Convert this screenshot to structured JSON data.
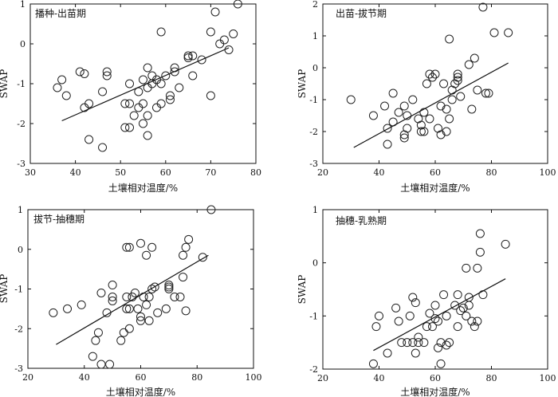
{
  "chart_data": [
    {
      "type": "scatter",
      "title": "播种-出苗期",
      "xlabel": "土壤相对温度/%",
      "ylabel": "SWAP",
      "xlim": [
        30,
        80
      ],
      "ylim": [
        -3,
        1
      ],
      "xticks": [
        30,
        40,
        50,
        60,
        70,
        80
      ],
      "yticks": [
        -3,
        -2,
        -1,
        0,
        1
      ],
      "grid": false,
      "points": [
        [
          36,
          -1.1
        ],
        [
          37,
          -0.9
        ],
        [
          38,
          -1.3
        ],
        [
          41,
          -0.7
        ],
        [
          42,
          -0.75
        ],
        [
          42,
          -1.6
        ],
        [
          43,
          -1.5
        ],
        [
          43,
          -2.4
        ],
        [
          46,
          -2.6
        ],
        [
          46,
          -1.2
        ],
        [
          47,
          -0.8
        ],
        [
          47,
          -0.7
        ],
        [
          51,
          -1.5
        ],
        [
          51,
          -2.1
        ],
        [
          52,
          -1.0
        ],
        [
          52,
          -1.5
        ],
        [
          52,
          -2.1
        ],
        [
          53,
          -1.8
        ],
        [
          54,
          -1.6
        ],
        [
          54,
          -1.2
        ],
        [
          55,
          -0.9
        ],
        [
          55,
          -1.5
        ],
        [
          55,
          -2.0
        ],
        [
          56,
          -0.6
        ],
        [
          56,
          -1.1
        ],
        [
          56,
          -1.8
        ],
        [
          56,
          -2.3
        ],
        [
          57,
          -0.8
        ],
        [
          57,
          -1.0
        ],
        [
          58,
          -0.9
        ],
        [
          58,
          -1.6
        ],
        [
          59,
          0.3
        ],
        [
          59,
          -1.5
        ],
        [
          59,
          -1.0
        ],
        [
          60,
          -0.8
        ],
        [
          61,
          -1.3
        ],
        [
          61,
          -1.4
        ],
        [
          62,
          -0.6
        ],
        [
          62,
          -0.7
        ],
        [
          63,
          -1.1
        ],
        [
          65,
          -0.3
        ],
        [
          65,
          -0.35
        ],
        [
          66,
          -0.8
        ],
        [
          66,
          -0.3
        ],
        [
          68,
          -0.4
        ],
        [
          70,
          0.3
        ],
        [
          70,
          -1.3
        ],
        [
          71,
          0.8
        ],
        [
          72,
          0.0
        ],
        [
          73,
          0.1
        ],
        [
          74,
          -0.15
        ],
        [
          75,
          0.25
        ],
        [
          76,
          1.0
        ]
      ],
      "fit": [
        [
          37,
          -1.93
        ],
        [
          74,
          -0.1
        ]
      ]
    },
    {
      "type": "scatter",
      "title": "出苗-拔节期",
      "xlabel": "土壤相对温度/%",
      "ylabel": "SWAP",
      "xlim": [
        20,
        100
      ],
      "ylim": [
        -3,
        2
      ],
      "xticks": [
        20,
        40,
        60,
        80,
        100
      ],
      "yticks": [
        -3,
        -2,
        -1,
        0,
        1,
        2
      ],
      "grid": false,
      "points": [
        [
          30,
          -1.0
        ],
        [
          38,
          -1.5
        ],
        [
          42,
          -1.2
        ],
        [
          43,
          -1.9
        ],
        [
          43,
          -2.4
        ],
        [
          45,
          -0.8
        ],
        [
          45,
          -1.7
        ],
        [
          47,
          -1.4
        ],
        [
          49,
          -2.1
        ],
        [
          49,
          -2.2
        ],
        [
          49,
          -1.2
        ],
        [
          50,
          -1.5
        ],
        [
          50,
          -1.9
        ],
        [
          52,
          -1.0
        ],
        [
          54,
          -1.6
        ],
        [
          55,
          -2.0
        ],
        [
          55,
          -1.8
        ],
        [
          56,
          -1.4
        ],
        [
          56,
          -2.0
        ],
        [
          57,
          -0.5
        ],
        [
          58,
          -0.2
        ],
        [
          58,
          -1.6
        ],
        [
          59,
          -0.3
        ],
        [
          60,
          -0.2
        ],
        [
          61,
          -1.9
        ],
        [
          62,
          -1.2
        ],
        [
          62,
          -2.1
        ],
        [
          63,
          -0.5
        ],
        [
          64,
          -1.3
        ],
        [
          64,
          -2.0
        ],
        [
          65,
          0.9
        ],
        [
          65,
          -1.6
        ],
        [
          66,
          -0.7
        ],
        [
          66,
          -1.0
        ],
        [
          67,
          -0.5
        ],
        [
          68,
          -0.2
        ],
        [
          68,
          -0.3
        ],
        [
          68,
          -0.4
        ],
        [
          69,
          -0.9
        ],
        [
          72,
          0.1
        ],
        [
          73,
          -1.3
        ],
        [
          74,
          0.3
        ],
        [
          75,
          -0.7
        ],
        [
          77,
          1.9
        ],
        [
          78,
          -0.8
        ],
        [
          79,
          -0.8
        ],
        [
          81,
          1.1
        ],
        [
          86,
          1.1
        ]
      ],
      "fit": [
        [
          31,
          -2.5
        ],
        [
          86,
          0.15
        ]
      ]
    },
    {
      "type": "scatter",
      "title": "拔节-抽穗期",
      "xlabel": "土壤相对温度/%",
      "ylabel": "SWAP",
      "xlim": [
        20,
        100
      ],
      "ylim": [
        -3,
        1
      ],
      "xticks": [
        20,
        40,
        60,
        80,
        100
      ],
      "yticks": [
        -3,
        -2,
        -1,
        0,
        1
      ],
      "grid": false,
      "points": [
        [
          29,
          -1.6
        ],
        [
          34,
          -1.5
        ],
        [
          39,
          -1.4
        ],
        [
          43,
          -2.7
        ],
        [
          44,
          -2.3
        ],
        [
          45,
          -2.1
        ],
        [
          46,
          -1.1
        ],
        [
          46,
          -2.9
        ],
        [
          48,
          -1.6
        ],
        [
          49,
          -2.9
        ],
        [
          50,
          -1.3
        ],
        [
          50,
          -1.2
        ],
        [
          50,
          -0.9
        ],
        [
          53,
          -2.3
        ],
        [
          54,
          -2.1
        ],
        [
          55,
          -1.5
        ],
        [
          55,
          0.05
        ],
        [
          55,
          -1.2
        ],
        [
          56,
          0.05
        ],
        [
          56,
          -1.5
        ],
        [
          56,
          -2.0
        ],
        [
          57,
          -1.2
        ],
        [
          58,
          -1.1
        ],
        [
          59,
          -1.5
        ],
        [
          60,
          0.15
        ],
        [
          60,
          -1.7
        ],
        [
          60,
          -1.8
        ],
        [
          61,
          -1.2
        ],
        [
          62,
          -0.15
        ],
        [
          62,
          -1.4
        ],
        [
          63,
          -1.8
        ],
        [
          63,
          -1.2
        ],
        [
          64,
          -1.0
        ],
        [
          64,
          0.05
        ],
        [
          65,
          -0.95
        ],
        [
          66,
          -1.6
        ],
        [
          69,
          -1.5
        ],
        [
          70,
          -1.0
        ],
        [
          70,
          -0.95
        ],
        [
          70,
          -0.9
        ],
        [
          72,
          -1.2
        ],
        [
          74,
          -1.2
        ],
        [
          75,
          -0.7
        ],
        [
          75,
          -0.15
        ],
        [
          76,
          -1.55
        ],
        [
          76,
          0.05
        ],
        [
          77,
          0.25
        ],
        [
          82,
          -0.2
        ],
        [
          85,
          1.0
        ]
      ],
      "fit": [
        [
          30,
          -2.4
        ],
        [
          84,
          -0.15
        ]
      ]
    },
    {
      "type": "scatter",
      "title": "抽穗-乳熟期",
      "xlabel": "土壤相对温度/%",
      "ylabel": "SWAP",
      "xlim": [
        20,
        100
      ],
      "ylim": [
        -2,
        1
      ],
      "xticks": [
        20,
        40,
        60,
        80,
        100
      ],
      "yticks": [
        -2,
        -1,
        0,
        1
      ],
      "grid": false,
      "points": [
        [
          38,
          -1.9
        ],
        [
          39,
          -1.2
        ],
        [
          40,
          -1.0
        ],
        [
          43,
          -1.7
        ],
        [
          46,
          -0.85
        ],
        [
          47,
          -1.1
        ],
        [
          48,
          -1.5
        ],
        [
          50,
          -1.5
        ],
        [
          51,
          -1.0
        ],
        [
          52,
          -1.5
        ],
        [
          52,
          -0.65
        ],
        [
          53,
          -0.75
        ],
        [
          53,
          -1.7
        ],
        [
          54,
          -1.4
        ],
        [
          54,
          -1.5
        ],
        [
          56,
          -1.5
        ],
        [
          57,
          -1.2
        ],
        [
          58,
          -0.95
        ],
        [
          59,
          -1.2
        ],
        [
          60,
          -0.8
        ],
        [
          60,
          -1.05
        ],
        [
          61,
          -1.1
        ],
        [
          61,
          -1.6
        ],
        [
          62,
          -1.5
        ],
        [
          62,
          -1.9
        ],
        [
          63,
          -0.6
        ],
        [
          64,
          -1.0
        ],
        [
          64,
          -1.55
        ],
        [
          65,
          -1.5
        ],
        [
          67,
          -0.8
        ],
        [
          68,
          -0.6
        ],
        [
          68,
          -1.2
        ],
        [
          69,
          -0.9
        ],
        [
          70,
          -0.85
        ],
        [
          71,
          -0.1
        ],
        [
          71,
          -1.0
        ],
        [
          72,
          -0.8
        ],
        [
          72,
          -0.65
        ],
        [
          73,
          -1.1
        ],
        [
          74,
          -1.2
        ],
        [
          75,
          -0.1
        ],
        [
          75,
          -1.1
        ],
        [
          76,
          0.55
        ],
        [
          76,
          0.2
        ],
        [
          77,
          -0.6
        ],
        [
          85,
          0.35
        ]
      ],
      "fit": [
        [
          38,
          -1.65
        ],
        [
          85,
          -0.3
        ]
      ]
    }
  ]
}
